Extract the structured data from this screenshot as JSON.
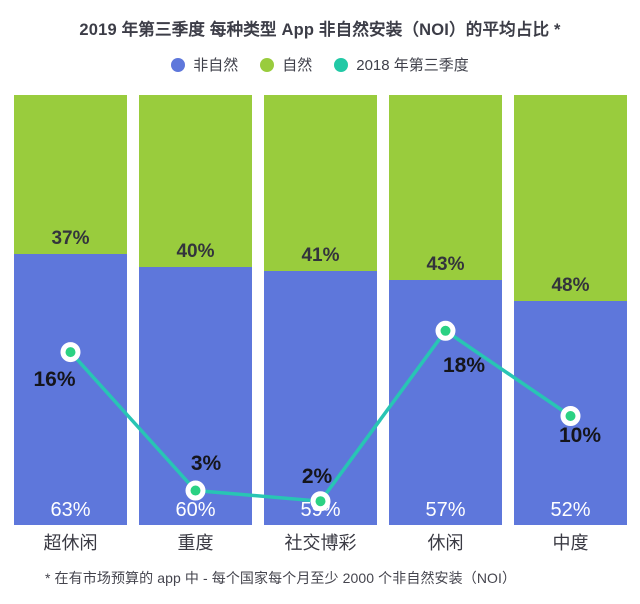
{
  "title": "2019 年第三季度 每种类型 App 非自然安装（NOI）的平均占比 *",
  "footnote": "* 在有市场预算的 app 中 - 每个国家每个月至少 2000 个非自然安装（NOI）",
  "legend": [
    {
      "label": "非自然",
      "color": "#5e77db"
    },
    {
      "label": "自然",
      "color": "#99cc3d"
    },
    {
      "label": "2018 年第三季度",
      "color": "#22c9a6"
    }
  ],
  "colors": {
    "bar_blue": "#5e77db",
    "bar_green": "#99cc3d",
    "line_teal": "#28c5b4",
    "marker_fill": "#2bd183",
    "marker_ring": "#ffffff",
    "dark_label": "#33343c",
    "white_label": "#ffffff"
  },
  "chart_data": {
    "type": "bar",
    "subtype": "stacked-percent-with-line-overlay",
    "title": "2019 年第三季度 每种类型 App 非自然安装（NOI）的平均占比 *",
    "categories": [
      "超休闲",
      "重度",
      "社交博彩",
      "休闲",
      "中度"
    ],
    "series": [
      {
        "name": "非自然",
        "kind": "bar-bottom",
        "color": "#5e77db",
        "values": [
          63,
          60,
          59,
          57,
          52
        ]
      },
      {
        "name": "自然",
        "kind": "bar-top",
        "color": "#99cc3d",
        "values": [
          37,
          40,
          41,
          43,
          48
        ]
      },
      {
        "name": "2018 年第三季度",
        "kind": "line",
        "color": "#28c5b4",
        "values": [
          16,
          3,
          2,
          18,
          10
        ]
      }
    ],
    "bar_ylim": [
      0,
      100
    ],
    "value_suffix": "%",
    "grid": false,
    "legend_position": "top-center",
    "xlabel": "",
    "ylabel": ""
  }
}
